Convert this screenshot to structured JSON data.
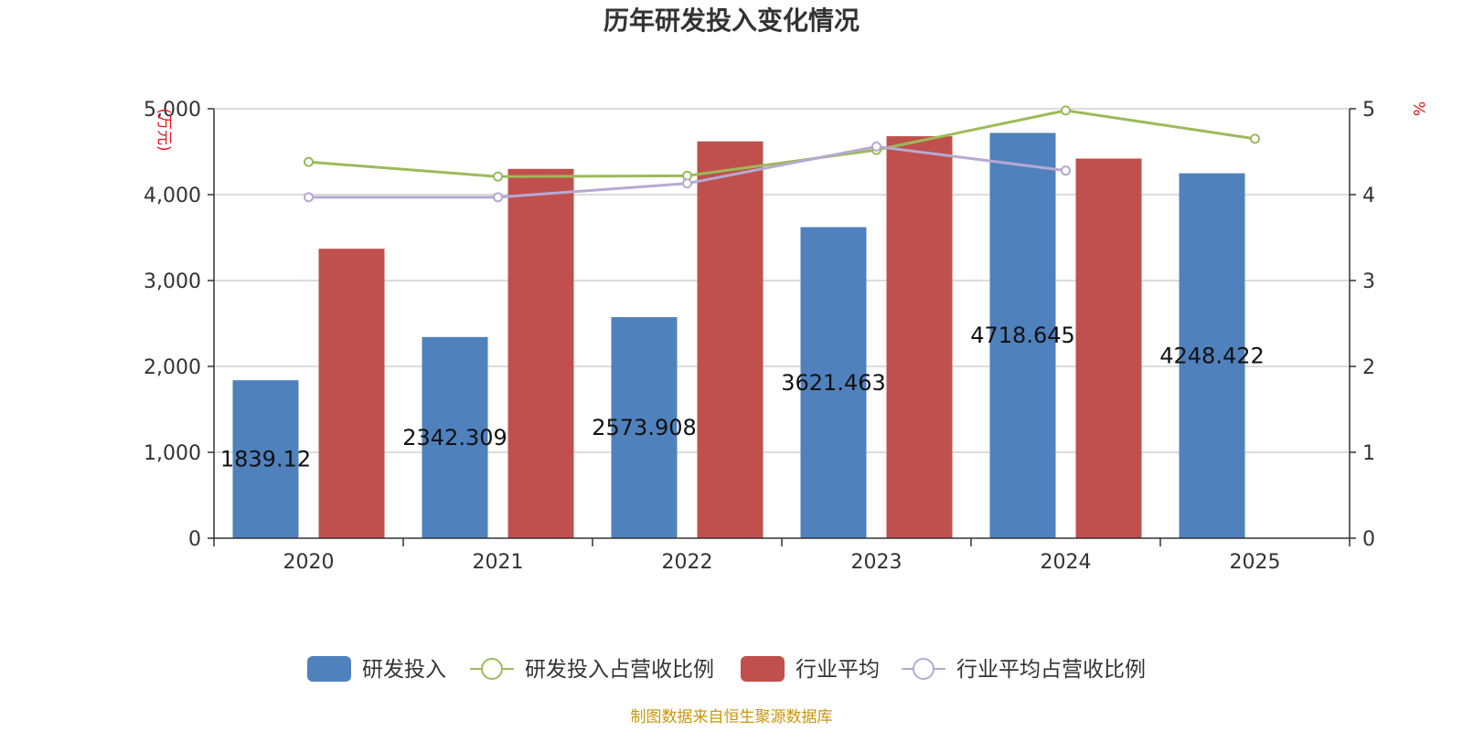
{
  "chart_data": {
    "type": "bar",
    "title": "历年研发投入变化情况",
    "categories": [
      "2020",
      "2021",
      "2022",
      "2023",
      "2024",
      "2025"
    ],
    "left_axis": {
      "unit": "(万元)",
      "ylim": [
        0,
        5000
      ],
      "ticks": [
        0,
        1000,
        2000,
        3000,
        4000,
        5000
      ],
      "tick_labels": [
        "0",
        "1,000",
        "2,000",
        "3,000",
        "4,000",
        "5,000"
      ]
    },
    "right_axis": {
      "unit": "%",
      "ylim": [
        0,
        5
      ],
      "ticks": [
        0,
        1,
        2,
        3,
        4,
        5
      ],
      "tick_labels": [
        "0",
        "1",
        "2",
        "3",
        "4",
        "5"
      ]
    },
    "grid": true,
    "legend_position": "bottom-center",
    "series": [
      {
        "name": "研发投入",
        "kind": "bar",
        "axis": "left",
        "color": "#4f81bd",
        "values": [
          1839.12,
          2342.309,
          2573.908,
          3621.463,
          4718.645,
          4248.422
        ],
        "labels": [
          "1839.12",
          "2342.309",
          "2573.908",
          "3621.463",
          "4718.645",
          "4248.422"
        ]
      },
      {
        "name": "研发投入占营收比例",
        "kind": "line",
        "axis": "right",
        "color": "#9bbb59",
        "values": [
          4.38,
          4.21,
          4.22,
          4.52,
          4.98,
          4.65
        ]
      },
      {
        "name": "行业平均",
        "kind": "bar",
        "axis": "left",
        "color": "#c0504d",
        "values": [
          3370,
          4300,
          4620,
          4680,
          4420,
          null
        ]
      },
      {
        "name": "行业平均占营收比例",
        "kind": "line",
        "axis": "right",
        "color": "#b7a9d3",
        "values": [
          3.97,
          3.97,
          4.13,
          4.56,
          4.28,
          null
        ]
      }
    ],
    "source": "制图数据来自恒生聚源数据库"
  }
}
